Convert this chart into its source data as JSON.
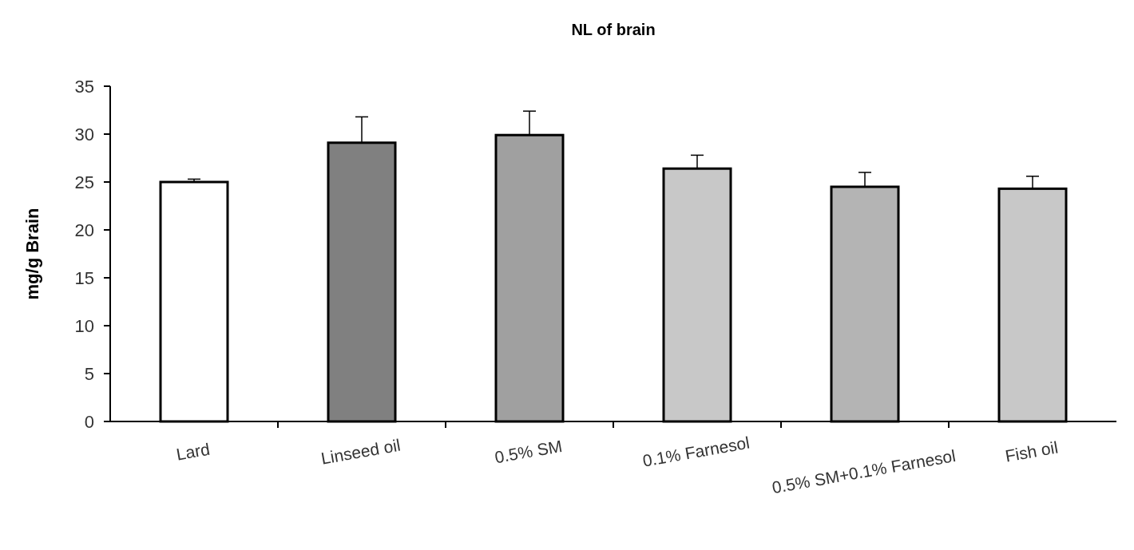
{
  "chart_data": {
    "type": "bar",
    "title": "NL of brain",
    "ylabel": "mg/g Brain",
    "categories": [
      "Lard",
      "Linseed oil",
      "0.5% SM",
      "0.1% Farnesol",
      "0.5% SM+0.1% Farnesol",
      "Fish oil"
    ],
    "values": [
      25.0,
      29.1,
      29.9,
      26.4,
      24.5,
      24.3
    ],
    "errors": [
      0.3,
      2.7,
      2.5,
      1.4,
      1.5,
      1.3
    ],
    "colors": [
      "#ffffff",
      "#808080",
      "#a0a0a0",
      "#c8c8c8",
      "#b4b4b4",
      "#c8c8c8"
    ],
    "ylim": [
      0,
      35
    ],
    "yticks": [
      0,
      5,
      10,
      15,
      20,
      25,
      30,
      35
    ],
    "grid": false
  }
}
